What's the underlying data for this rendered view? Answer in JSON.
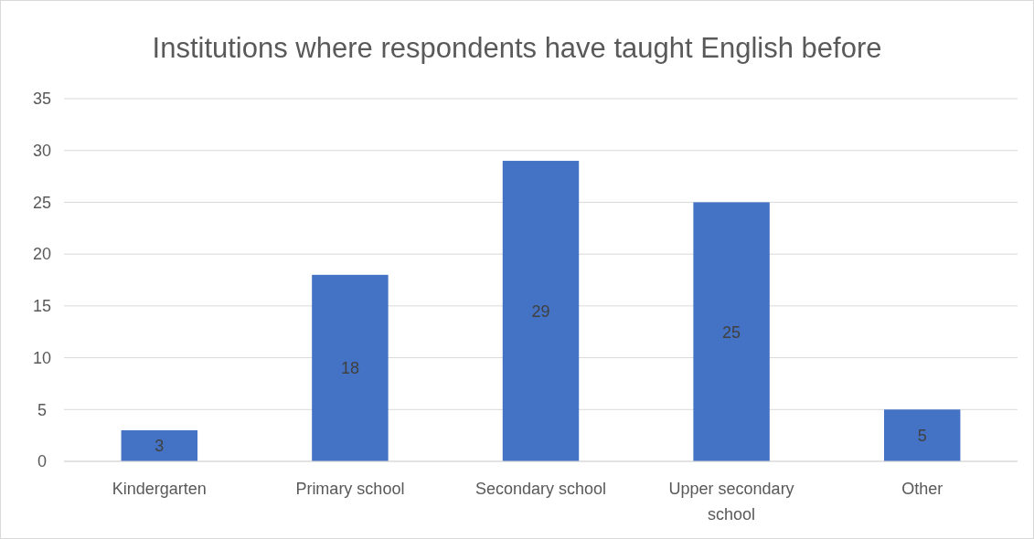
{
  "chart_data": {
    "type": "bar",
    "title": "Institutions where respondents have taught English before",
    "categories": [
      "Kindergarten",
      "Primary school",
      "Secondary school",
      "Upper secondary school",
      "Other"
    ],
    "values": [
      3,
      18,
      29,
      25,
      5
    ],
    "color": "#4472c4",
    "ylim": [
      0,
      35
    ],
    "yticks": [
      0,
      5,
      10,
      15,
      20,
      25,
      30,
      35
    ],
    "grid": "y",
    "data_labels": true
  }
}
